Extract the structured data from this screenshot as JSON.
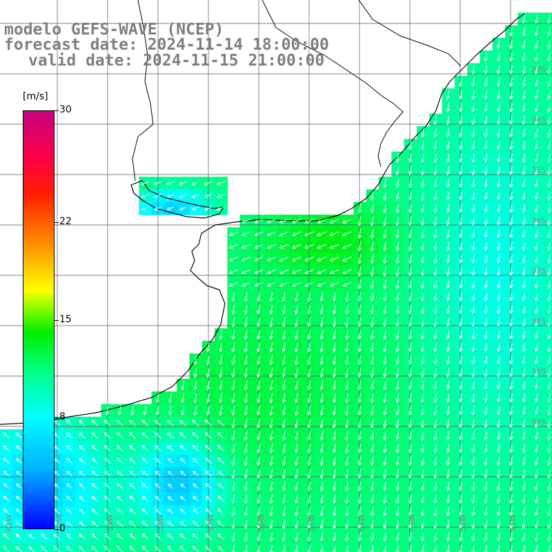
{
  "title": {
    "line1": "modelo GEFS-WAVE (NCEP)",
    "line2": "forecast date: 2024-11-14 18:00:00",
    "line3": "valid date: 2024-11-15 21:00:00"
  },
  "colorbar": {
    "unit": "[m/s]",
    "ticks": [
      {
        "value": 30,
        "label": "30"
      },
      {
        "value": 22,
        "label": "22"
      },
      {
        "value": 15,
        "label": "15"
      },
      {
        "value": 8,
        "label": "8"
      },
      {
        "value": 0,
        "label": "0"
      }
    ],
    "min": 0,
    "max": 30
  },
  "axes": {
    "lat_labels": [
      "33S",
      "34S",
      "35S",
      "36S",
      "37S",
      "38S",
      "39S",
      "40S"
    ],
    "lon_labels": [
      "61W",
      "60W",
      "59W",
      "58W",
      "57W",
      "56W",
      "55W",
      "54W",
      "53W",
      "52W",
      "51W"
    ]
  },
  "colors": {
    "land": "#ffffff",
    "grid": "#555555",
    "coast": "#000000",
    "arrows": "#ffffff",
    "title": "#7f7f7f"
  }
}
